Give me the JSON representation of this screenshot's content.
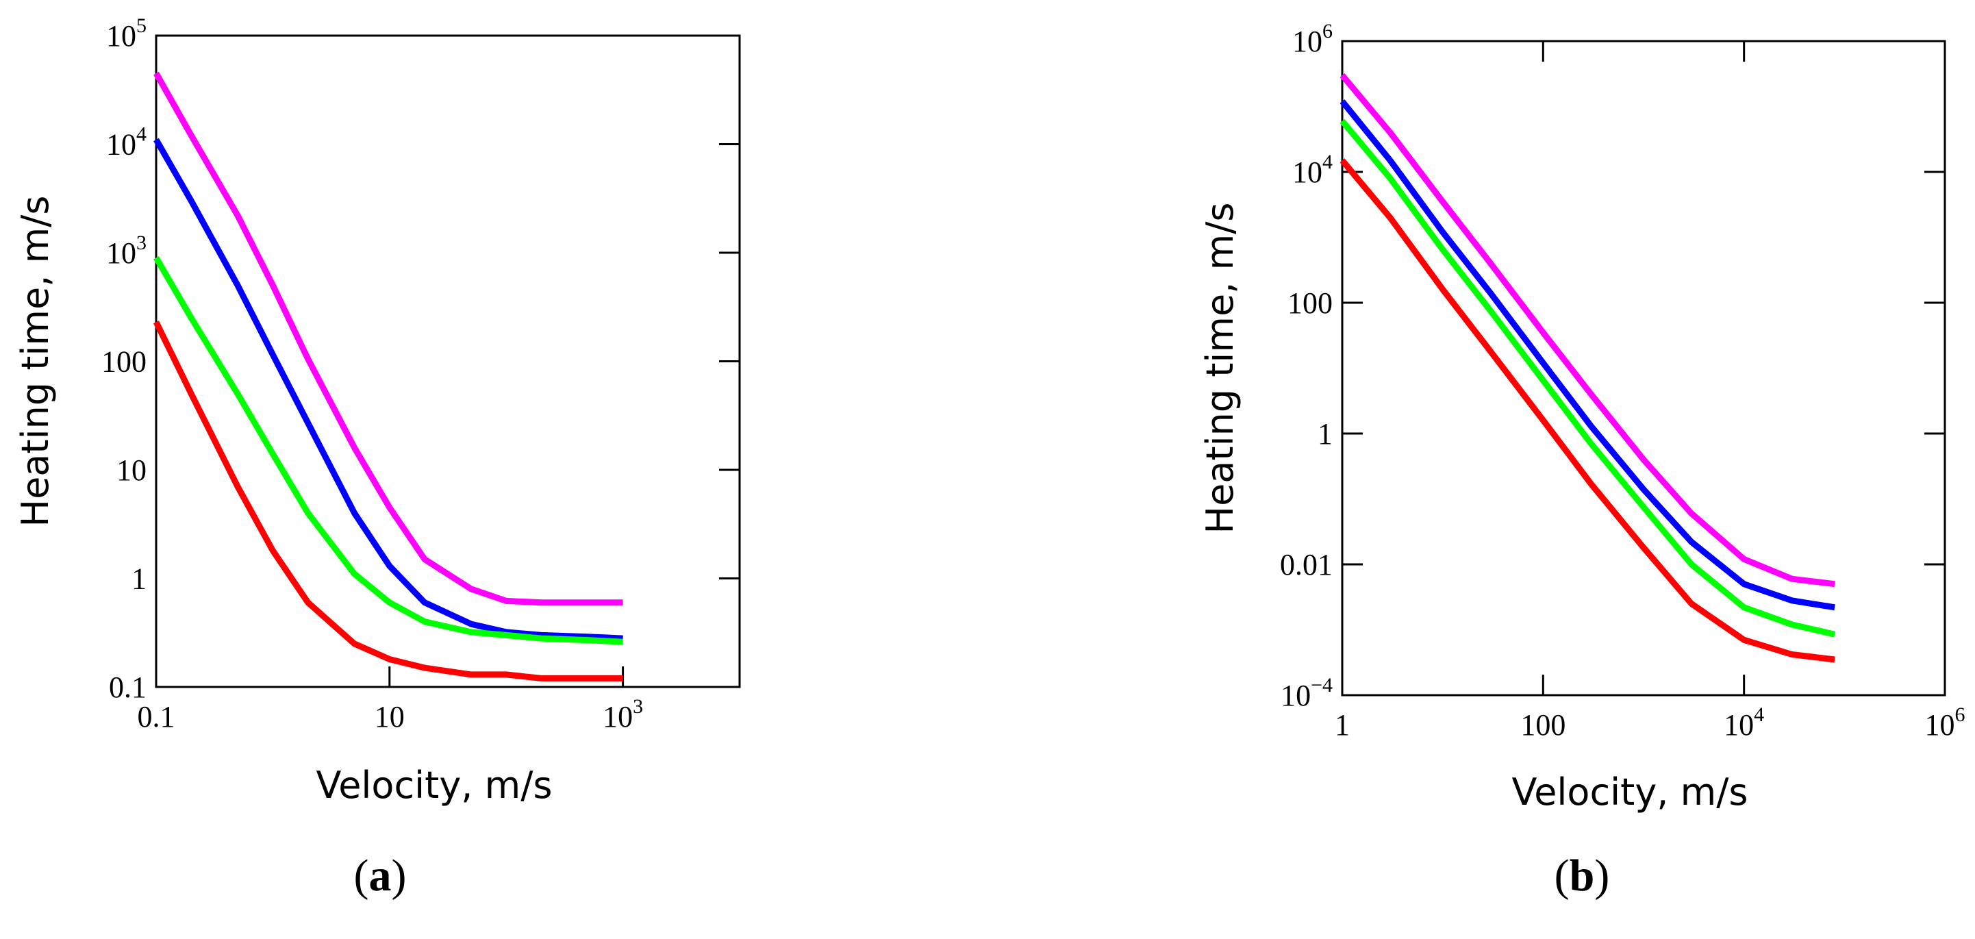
{
  "chart_data": [
    {
      "type": "line",
      "caption": "a",
      "xlabel": "Velocity, m/s",
      "ylabel": "Heating time, m/s",
      "x_scale": "log",
      "y_scale": "log",
      "xlim": [
        0.1,
        10000
      ],
      "ylim": [
        0.1,
        100000
      ],
      "x_ticks": [
        {
          "value": 0.1,
          "label": "0.1"
        },
        {
          "value": 10,
          "label": "10"
        },
        {
          "value": 1000,
          "label": "10",
          "exp": "3"
        }
      ],
      "y_ticks": [
        {
          "value": 0.1,
          "label": "0.1"
        },
        {
          "value": 1,
          "label": "1"
        },
        {
          "value": 10,
          "label": "10"
        },
        {
          "value": 100,
          "label": "100"
        },
        {
          "value": 1000,
          "label": "10",
          "exp": "3"
        },
        {
          "value": 10000,
          "label": "10",
          "exp": "4"
        },
        {
          "value": 100000,
          "label": "10",
          "exp": "5"
        }
      ],
      "grid": false,
      "series": [
        {
          "color": "#ff00ff",
          "x": [
            0.1,
            0.2,
            0.5,
            1,
            2,
            5,
            10,
            20,
            50,
            100,
            200,
            500,
            1000
          ],
          "y": [
            45000,
            12000,
            2200,
            500,
            105,
            16,
            4.5,
            1.5,
            0.8,
            0.62,
            0.6,
            0.6,
            0.6
          ]
        },
        {
          "color": "#0000ff",
          "x": [
            0.1,
            0.2,
            0.5,
            1,
            2,
            5,
            10,
            20,
            50,
            100,
            200,
            500,
            1000
          ],
          "y": [
            11000,
            3000,
            500,
            115,
            27,
            4,
            1.3,
            0.6,
            0.38,
            0.32,
            0.3,
            0.29,
            0.28
          ]
        },
        {
          "color": "#00ff00",
          "x": [
            0.1,
            0.2,
            0.5,
            1,
            2,
            5,
            10,
            20,
            50,
            100,
            200,
            500,
            1000
          ],
          "y": [
            900,
            250,
            50,
            14,
            4,
            1.1,
            0.6,
            0.4,
            0.32,
            0.3,
            0.28,
            0.27,
            0.26
          ]
        },
        {
          "color": "#ff0000",
          "x": [
            0.1,
            0.2,
            0.5,
            1,
            2,
            5,
            10,
            20,
            50,
            100,
            200,
            500,
            1000
          ],
          "y": [
            230,
            50,
            7,
            1.8,
            0.6,
            0.25,
            0.18,
            0.15,
            0.13,
            0.13,
            0.12,
            0.12,
            0.12
          ]
        }
      ]
    },
    {
      "type": "line",
      "caption": "b",
      "xlabel": "Velocity, m/s",
      "ylabel": "Heating time, m/s",
      "x_scale": "log",
      "y_scale": "log",
      "xlim": [
        1,
        1000000
      ],
      "ylim": [
        0.0001,
        1000000
      ],
      "x_ticks": [
        {
          "value": 1,
          "label": "1"
        },
        {
          "value": 100,
          "label": "100"
        },
        {
          "value": 10000,
          "label": "10",
          "exp": "4"
        },
        {
          "value": 1000000,
          "label": "10",
          "exp": "6"
        }
      ],
      "y_ticks": [
        {
          "value": 0.0001,
          "label": "10",
          "exp": "−4"
        },
        {
          "value": 0.01,
          "label": "0.01"
        },
        {
          "value": 1,
          "label": "1"
        },
        {
          "value": 100,
          "label": "100"
        },
        {
          "value": 10000,
          "label": "10",
          "exp": "4"
        },
        {
          "value": 1000000,
          "label": "10",
          "exp": "6"
        }
      ],
      "grid": false,
      "series": [
        {
          "color": "#ff00ff",
          "x": [
            1,
            3,
            10,
            30,
            100,
            300,
            1000,
            3000,
            10000,
            30000,
            80000
          ],
          "y": [
            300000,
            40000,
            3500,
            400,
            35,
            4,
            0.4,
            0.06,
            0.012,
            0.006,
            0.005
          ]
        },
        {
          "color": "#0000ff",
          "x": [
            1,
            3,
            10,
            30,
            100,
            300,
            1000,
            3000,
            10000,
            30000,
            80000
          ],
          "y": [
            120000,
            15000,
            1200,
            140,
            12,
            1.3,
            0.14,
            0.022,
            0.005,
            0.0028,
            0.0022
          ]
        },
        {
          "color": "#00ff00",
          "x": [
            1,
            3,
            10,
            30,
            100,
            300,
            1000,
            3000,
            10000,
            30000,
            80000
          ],
          "y": [
            60000,
            8000,
            650,
            75,
            6.5,
            0.7,
            0.075,
            0.01,
            0.0022,
            0.0012,
            0.00085
          ]
        },
        {
          "color": "#ff0000",
          "x": [
            1,
            3,
            10,
            30,
            100,
            300,
            1000,
            3000,
            10000,
            30000,
            80000
          ],
          "y": [
            15000,
            2000,
            160,
            18,
            1.6,
            0.17,
            0.018,
            0.0025,
            0.0007,
            0.00042,
            0.00035
          ]
        }
      ]
    }
  ]
}
